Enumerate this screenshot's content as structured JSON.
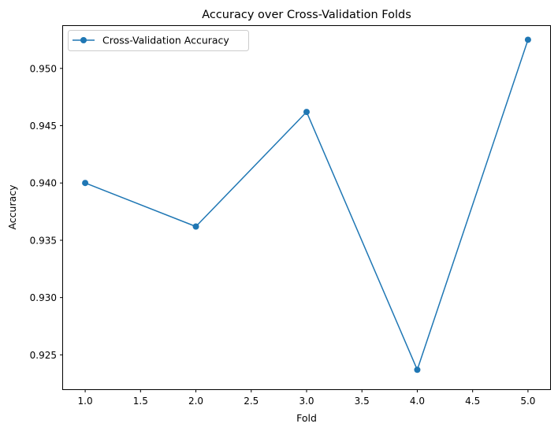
{
  "chart_data": {
    "type": "line",
    "title": "Accuracy over Cross-Validation Folds",
    "xlabel": "Fold",
    "ylabel": "Accuracy",
    "xlim": [
      0.8,
      5.2
    ],
    "ylim": [
      0.922,
      0.9537
    ],
    "x_ticks": [
      1.0,
      1.5,
      2.0,
      2.5,
      3.0,
      3.5,
      4.0,
      4.5,
      5.0
    ],
    "x_tick_labels": [
      "1.0",
      "1.5",
      "2.0",
      "2.5",
      "3.0",
      "3.5",
      "4.0",
      "4.5",
      "5.0"
    ],
    "y_ticks": [
      0.925,
      0.93,
      0.935,
      0.94,
      0.945,
      0.95
    ],
    "y_tick_labels": [
      "0.925",
      "0.930",
      "0.935",
      "0.940",
      "0.945",
      "0.950"
    ],
    "grid": false,
    "legend_position": "top-left",
    "series": [
      {
        "name": "Cross-Validation Accuracy",
        "color": "#1f77b4",
        "marker": "circle",
        "x": [
          1,
          2,
          3,
          4,
          5
        ],
        "y": [
          0.94,
          0.9362,
          0.9462,
          0.9237,
          0.9525
        ]
      }
    ]
  }
}
